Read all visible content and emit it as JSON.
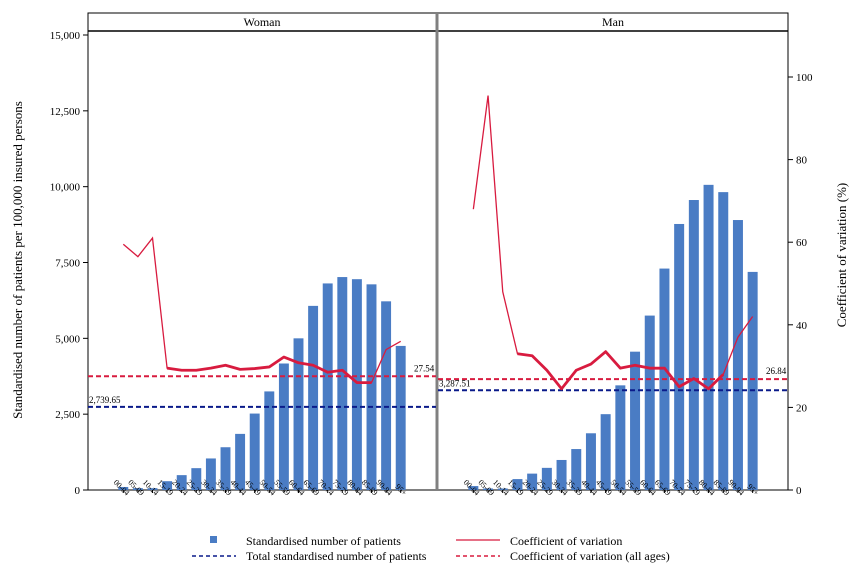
{
  "chart_data": {
    "type": "bar",
    "panels": [
      "Woman",
      "Man"
    ],
    "categories": [
      "00-04",
      "05-09",
      "10-14",
      "15-19",
      "20-24",
      "25-29",
      "30-34",
      "35-39",
      "40-44",
      "45-49",
      "50-54",
      "55-59",
      "60-64",
      "65-69",
      "70-74",
      "75-79",
      "80-84",
      "85-89",
      "90-94",
      "95+"
    ],
    "series": [
      {
        "name": "Standardised number of patients",
        "axis": "left",
        "type": "bar",
        "values_by_panel": {
          "Woman": [
            100,
            60,
            60,
            290,
            490,
            720,
            1040,
            1410,
            1850,
            2520,
            3250,
            4170,
            5000,
            6070,
            6810,
            7020,
            6950,
            6780,
            6220,
            4750
          ],
          "Man": [
            130,
            50,
            50,
            360,
            540,
            730,
            990,
            1350,
            1870,
            2500,
            3450,
            4560,
            5750,
            7300,
            8770,
            9560,
            10060,
            9820,
            8900,
            7190
          ]
        }
      },
      {
        "name": "Coefficient of variation",
        "axis": "right",
        "type": "line",
        "values_by_panel": {
          "Woman": [
            59.5,
            56.5,
            61,
            29.5,
            29,
            29,
            29.5,
            30.2,
            29.2,
            29.4,
            29.8,
            32.2,
            30.8,
            30.2,
            28.5,
            29,
            26,
            26,
            34,
            36
          ],
          "Man": [
            68,
            95.5,
            48,
            33,
            32.5,
            29,
            24.5,
            29,
            30.5,
            33.5,
            29.5,
            30.2,
            29.5,
            29.5,
            25,
            27,
            24.5,
            28,
            37,
            42
          ]
        }
      },
      {
        "name": "Total standardised number of patients",
        "axis": "left",
        "type": "hline",
        "values_by_panel": {
          "Woman": 2739.65,
          "Man": 3287.51
        }
      },
      {
        "name": "Coefficient of variation (all ages)",
        "axis": "right",
        "type": "hline",
        "values_by_panel": {
          "Woman": 27.54,
          "Man": 26.84
        }
      }
    ],
    "ylabel": "Standardised number of patients per 100,000 insured persons",
    "y2label": "Coefficient of variation (%)",
    "ylim": [
      0,
      15000
    ],
    "y2lim": [
      0,
      110
    ],
    "yticks": [
      "0",
      "2,500",
      "5,000",
      "7,500",
      "10,000",
      "12,500",
      "15,000"
    ],
    "y2ticks": [
      "0",
      "20",
      "40",
      "60",
      "80",
      "100"
    ],
    "annotations": {
      "Woman": {
        "total": "2,739.65",
        "cv": "27.54"
      },
      "Man": {
        "total": "3,287.51",
        "cv": "26.84"
      }
    },
    "legend": {
      "placement": "bottom",
      "items": [
        "Standardised number of patients",
        "Coefficient of variation",
        "Total standardised number of patients",
        "Coefficient of variation (all ages)"
      ]
    },
    "colors": {
      "bar": "#4a7cc4",
      "cv_line": "#d81b3f",
      "total_line": "#0a1a8a",
      "cv_all_line": "#d81b3f"
    }
  }
}
